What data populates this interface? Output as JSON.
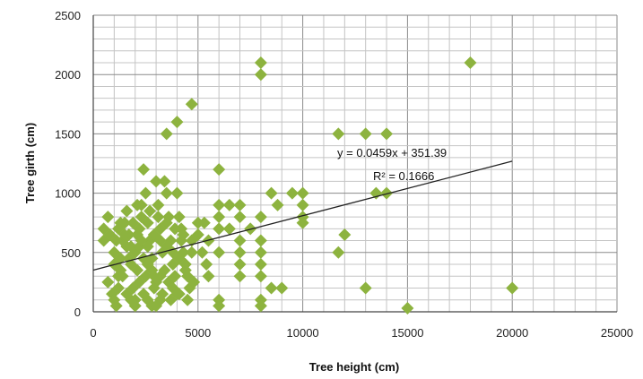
{
  "chart_data": {
    "type": "scatter",
    "xlabel": "Tree height (cm)",
    "ylabel": "Tree girth (cm)",
    "xlim": [
      0,
      25000
    ],
    "ylim": [
      0,
      2500
    ],
    "x_ticks": [
      0,
      5000,
      10000,
      15000,
      20000,
      25000
    ],
    "y_ticks": [
      0,
      500,
      1000,
      1500,
      2000,
      2500
    ],
    "x_minor_step": 1000,
    "y_minor_step": 100,
    "grid": true,
    "marker_color": "#8db33f",
    "trendline": {
      "type": "linear",
      "slope": 0.0459,
      "intercept": 351.39,
      "x_range": [
        0,
        20000
      ],
      "equation_label": "y = 0.0459x + 351.39",
      "r2_label": "R² = 0.1666"
    },
    "points": [
      [
        500,
        600
      ],
      [
        500,
        700
      ],
      [
        700,
        800
      ],
      [
        800,
        650
      ],
      [
        700,
        250
      ],
      [
        900,
        150
      ],
      [
        1000,
        100
      ],
      [
        1100,
        50
      ],
      [
        1200,
        300
      ],
      [
        1300,
        450
      ],
      [
        1400,
        600
      ],
      [
        1500,
        750
      ],
      [
        1600,
        550
      ],
      [
        1700,
        650
      ],
      [
        1800,
        400
      ],
      [
        1900,
        200
      ],
      [
        2000,
        100
      ],
      [
        2100,
        900
      ],
      [
        2200,
        700
      ],
      [
        2300,
        800
      ],
      [
        2400,
        1200
      ],
      [
        2500,
        1000
      ],
      [
        2600,
        750
      ],
      [
        2700,
        600
      ],
      [
        2800,
        450
      ],
      [
        2900,
        300
      ],
      [
        3000,
        1100
      ],
      [
        3100,
        900
      ],
      [
        3200,
        700
      ],
      [
        3300,
        500
      ],
      [
        3400,
        1100
      ],
      [
        3500,
        1000
      ],
      [
        3600,
        800
      ],
      [
        3700,
        600
      ],
      [
        3800,
        400
      ],
      [
        3900,
        300
      ],
      [
        4000,
        1000
      ],
      [
        4100,
        800
      ],
      [
        4200,
        700
      ],
      [
        4300,
        500
      ],
      [
        4400,
        400
      ],
      [
        4500,
        300
      ],
      [
        4600,
        200
      ],
      [
        4800,
        250
      ],
      [
        5000,
        750
      ],
      [
        5200,
        500
      ],
      [
        5400,
        400
      ],
      [
        6000,
        1200
      ],
      [
        6000,
        900
      ],
      [
        6000,
        800
      ],
      [
        6000,
        700
      ],
      [
        6000,
        500
      ],
      [
        6000,
        100
      ],
      [
        6000,
        50
      ],
      [
        6500,
        900
      ],
      [
        6500,
        700
      ],
      [
        7000,
        900
      ],
      [
        7000,
        800
      ],
      [
        7000,
        600
      ],
      [
        7000,
        500
      ],
      [
        7000,
        400
      ],
      [
        7000,
        300
      ],
      [
        7500,
        700
      ],
      [
        8000,
        800
      ],
      [
        8000,
        600
      ],
      [
        8000,
        500
      ],
      [
        8000,
        400
      ],
      [
        8000,
        300
      ],
      [
        8000,
        100
      ],
      [
        8000,
        50
      ],
      [
        8500,
        1000
      ],
      [
        8500,
        200
      ],
      [
        8800,
        900
      ],
      [
        9000,
        200
      ],
      [
        9500,
        1000
      ],
      [
        10000,
        1000
      ],
      [
        10000,
        900
      ],
      [
        10000,
        800
      ],
      [
        10000,
        750
      ],
      [
        11700,
        500
      ],
      [
        12000,
        650
      ],
      [
        13000,
        200
      ],
      [
        13500,
        1000
      ],
      [
        14000,
        1000
      ],
      [
        15000,
        30
      ],
      [
        20000,
        200
      ],
      [
        1200,
        700
      ],
      [
        1500,
        650
      ],
      [
        1800,
        550
      ],
      [
        2000,
        500
      ],
      [
        2200,
        550
      ],
      [
        2400,
        450
      ],
      [
        2600,
        400
      ],
      [
        2800,
        350
      ],
      [
        3000,
        250
      ],
      [
        3200,
        300
      ],
      [
        3400,
        350
      ],
      [
        3600,
        250
      ],
      [
        3800,
        200
      ],
      [
        4000,
        150
      ],
      [
        1000,
        400
      ],
      [
        1200,
        200
      ],
      [
        1400,
        300
      ],
      [
        1600,
        150
      ],
      [
        1800,
        100
      ],
      [
        2000,
        50
      ],
      [
        2200,
        250
      ],
      [
        2400,
        150
      ],
      [
        2600,
        100
      ],
      [
        2800,
        50
      ],
      [
        3000,
        50
      ],
      [
        3200,
        100
      ],
      [
        1000,
        500
      ],
      [
        1300,
        350
      ],
      [
        1700,
        450
      ],
      [
        2100,
        350
      ],
      [
        2500,
        300
      ],
      [
        2900,
        200
      ],
      [
        3300,
        150
      ],
      [
        3700,
        100
      ],
      [
        4100,
        150
      ],
      [
        4500,
        100
      ],
      [
        4200,
        600
      ],
      [
        4700,
        500
      ],
      [
        5000,
        650
      ],
      [
        5300,
        750
      ],
      [
        5500,
        600
      ],
      [
        5500,
        300
      ],
      [
        3500,
        1500
      ],
      [
        4000,
        1600
      ],
      [
        4700,
        1750
      ],
      [
        8000,
        2000
      ],
      [
        8000,
        2100
      ],
      [
        11700,
        1500
      ],
      [
        13000,
        1500
      ],
      [
        14000,
        1500
      ],
      [
        18000,
        2100
      ],
      [
        2300,
        900
      ],
      [
        2700,
        850
      ],
      [
        3100,
        800
      ],
      [
        3500,
        750
      ],
      [
        3900,
        700
      ],
      [
        4300,
        650
      ],
      [
        4700,
        600
      ],
      [
        1100,
        600
      ],
      [
        1300,
        750
      ],
      [
        1600,
        850
      ],
      [
        1900,
        750
      ],
      [
        2100,
        650
      ],
      [
        2300,
        600
      ],
      [
        2600,
        550
      ],
      [
        2900,
        650
      ],
      [
        3200,
        600
      ],
      [
        3500,
        550
      ],
      [
        3800,
        500
      ],
      [
        4100,
        450
      ],
      [
        4400,
        350
      ]
    ]
  }
}
